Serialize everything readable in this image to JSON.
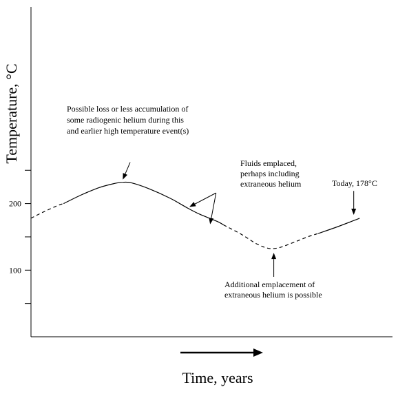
{
  "chart_data": {
    "type": "line",
    "title": "",
    "xlabel": "Time, years",
    "ylabel": "Temperature, °C",
    "ylim": [
      0,
      300
    ],
    "xlim": [
      0,
      1
    ],
    "y_ticks": [
      50,
      100,
      150,
      200,
      250
    ],
    "y_tick_labels": [
      {
        "value": 100,
        "label": "100"
      },
      {
        "value": 200,
        "label": "200"
      }
    ],
    "grid": false,
    "legend": "none",
    "series": [
      {
        "segments": [
          {
            "style": "dashed",
            "points": [
              [
                0.0,
                178
              ],
              [
                0.04,
                187
              ],
              [
                0.09,
                197
              ],
              [
                0.11,
                200
              ]
            ]
          },
          {
            "style": "solid",
            "points": [
              [
                0.11,
                200
              ],
              [
                0.17,
                213
              ],
              [
                0.23,
                224
              ],
              [
                0.28,
                230
              ],
              [
                0.31,
                232
              ],
              [
                0.34,
                231
              ],
              [
                0.4,
                222
              ],
              [
                0.47,
                208
              ],
              [
                0.53,
                193
              ],
              [
                0.57,
                184
              ],
              [
                0.63,
                173
              ],
              [
                0.65,
                168
              ]
            ]
          },
          {
            "style": "dashed",
            "points": [
              [
                0.65,
                168
              ],
              [
                0.71,
                154
              ],
              [
                0.76,
                140
              ],
              [
                0.8,
                133
              ],
              [
                0.83,
                133
              ],
              [
                0.86,
                137
              ],
              [
                0.9,
                144
              ],
              [
                0.94,
                151
              ],
              [
                0.97,
                155
              ]
            ]
          },
          {
            "style": "solid",
            "points": [
              [
                0.97,
                155
              ],
              [
                1.04,
                166
              ],
              [
                1.11,
                178
              ]
            ]
          }
        ]
      }
    ],
    "annotations": [
      {
        "lines": [
          "Possible loss or less accumulation of",
          "some radiogenic helium during this",
          "and earlier high temperature event(s)"
        ],
        "arrows": [
          {
            "from": [
              0.335,
              262
            ],
            "to": [
              0.31,
              236
            ]
          }
        ]
      },
      {
        "lines": [
          "Fluids emplaced,",
          "perhaps including",
          "extraneous helium"
        ],
        "arrows": [
          {
            "from": [
              0.625,
              216
            ],
            "to": [
              0.535,
              195
            ]
          },
          {
            "from": [
              0.625,
              216
            ],
            "to": [
              0.605,
              169
            ]
          }
        ]
      },
      {
        "lines": [
          "Today, 178°C"
        ],
        "arrows": [
          {
            "from": [
              1.09,
              219
            ],
            "to": [
              1.09,
              183
            ]
          }
        ]
      },
      {
        "lines": [
          "Additional emplacement of",
          "extraneous helium is possible"
        ],
        "arrows": [
          {
            "from": [
              0.82,
              90
            ],
            "to": [
              0.82,
              126
            ]
          }
        ]
      }
    ],
    "time_arrow": true
  }
}
